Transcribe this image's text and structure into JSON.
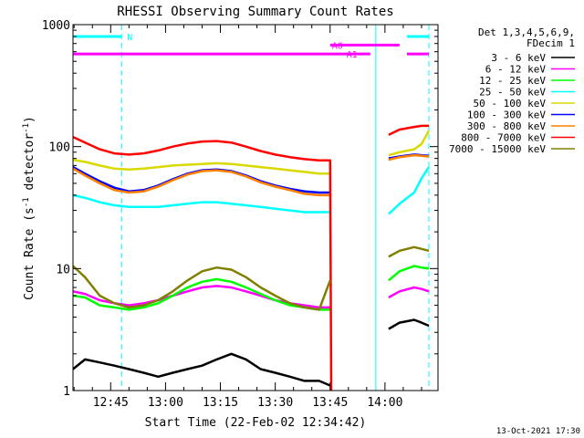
{
  "chart_data": {
    "type": "line",
    "title": "RHESSI Observing Summary Count Rates",
    "xlabel": "Start Time (22-Feb-02 12:34:42)",
    "ylabel": "Count Rate (s",
    "ylabel_sup1": "-1",
    "ylabel_mid": " detector",
    "ylabel_sup2": "-1",
    "ylabel_end": ")",
    "yscale": "log",
    "xlim": [
      754.7,
      854.5
    ],
    "ylim": [
      1,
      1000
    ],
    "x_unit": "minutes of day (UT)",
    "x_ticks": [
      {
        "value": 765,
        "label": "12:45"
      },
      {
        "value": 780,
        "label": "13:00"
      },
      {
        "value": 795,
        "label": "13:15"
      },
      {
        "value": 810,
        "label": "13:30"
      },
      {
        "value": 825,
        "label": "13:45"
      },
      {
        "value": 840,
        "label": "14:00"
      }
    ],
    "y_ticks": [
      {
        "value": 1,
        "label": "1"
      },
      {
        "value": 10,
        "label": "10"
      },
      {
        "value": 100,
        "label": "100"
      },
      {
        "value": 1000,
        "label": "1000"
      }
    ],
    "legend": {
      "placement": "right",
      "header": [
        "Det 1,3,4,5,6,9,",
        "FDecim 1"
      ]
    },
    "series": [
      {
        "name": "3 - 6 keV",
        "color": "#000000",
        "segments": [
          [
            [
              754.7,
              1.5
            ],
            [
              758,
              1.8
            ],
            [
              762,
              1.7
            ],
            [
              766,
              1.6
            ],
            [
              770,
              1.5
            ],
            [
              774,
              1.4
            ],
            [
              778,
              1.3
            ],
            [
              782,
              1.4
            ],
            [
              786,
              1.5
            ],
            [
              790,
              1.6
            ],
            [
              794,
              1.8
            ],
            [
              798,
              2.0
            ],
            [
              802,
              1.8
            ],
            [
              806,
              1.5
            ],
            [
              810,
              1.4
            ],
            [
              814,
              1.3
            ],
            [
              818,
              1.2
            ],
            [
              822,
              1.2
            ],
            [
              825,
              1.1
            ]
          ],
          [
            [
              841,
              3.2
            ],
            [
              844,
              3.6
            ],
            [
              848,
              3.8
            ],
            [
              850,
              3.6
            ],
            [
              852,
              3.4
            ]
          ]
        ]
      },
      {
        "name": "6 - 12 keV",
        "color": "#ff00ff",
        "segments": [
          [
            [
              754.7,
              6.5
            ],
            [
              758,
              6.2
            ],
            [
              762,
              5.5
            ],
            [
              766,
              5.2
            ],
            [
              770,
              5.0
            ],
            [
              774,
              5.2
            ],
            [
              778,
              5.5
            ],
            [
              782,
              6.0
            ],
            [
              786,
              6.5
            ],
            [
              790,
              7.0
            ],
            [
              794,
              7.2
            ],
            [
              798,
              7.0
            ],
            [
              802,
              6.5
            ],
            [
              806,
              6.0
            ],
            [
              810,
              5.5
            ],
            [
              814,
              5.2
            ],
            [
              818,
              5.0
            ],
            [
              822,
              4.8
            ],
            [
              825,
              4.8
            ]
          ],
          [
            [
              841,
              5.8
            ],
            [
              844,
              6.5
            ],
            [
              848,
              7.0
            ],
            [
              850,
              6.8
            ],
            [
              852,
              6.5
            ]
          ]
        ]
      },
      {
        "name": "12 - 25 keV",
        "color": "#00ff00",
        "segments": [
          [
            [
              754.7,
              6.0
            ],
            [
              758,
              5.8
            ],
            [
              762,
              5.0
            ],
            [
              766,
              4.8
            ],
            [
              770,
              4.6
            ],
            [
              774,
              4.8
            ],
            [
              778,
              5.2
            ],
            [
              782,
              6.0
            ],
            [
              786,
              7.0
            ],
            [
              790,
              7.8
            ],
            [
              794,
              8.2
            ],
            [
              798,
              7.8
            ],
            [
              802,
              7.0
            ],
            [
              806,
              6.2
            ],
            [
              810,
              5.5
            ],
            [
              814,
              5.0
            ],
            [
              818,
              4.8
            ],
            [
              822,
              4.6
            ],
            [
              825,
              4.6
            ]
          ],
          [
            [
              841,
              8.0
            ],
            [
              844,
              9.5
            ],
            [
              848,
              10.5
            ],
            [
              850,
              10.2
            ],
            [
              852,
              10.0
            ]
          ]
        ]
      },
      {
        "name": "25 - 50 keV",
        "color": "#00ffff",
        "segments": [
          [
            [
              754.7,
              40
            ],
            [
              758,
              38
            ],
            [
              762,
              35
            ],
            [
              766,
              33
            ],
            [
              770,
              32
            ],
            [
              774,
              32
            ],
            [
              778,
              32
            ],
            [
              782,
              33
            ],
            [
              786,
              34
            ],
            [
              790,
              35
            ],
            [
              794,
              35
            ],
            [
              798,
              34
            ],
            [
              802,
              33
            ],
            [
              806,
              32
            ],
            [
              810,
              31
            ],
            [
              814,
              30
            ],
            [
              818,
              29
            ],
            [
              822,
              29
            ],
            [
              825,
              29
            ]
          ],
          [
            [
              841,
              28
            ],
            [
              844,
              34
            ],
            [
              848,
              42
            ],
            [
              850,
              55
            ],
            [
              852,
              68
            ]
          ]
        ]
      },
      {
        "name": "50 - 100 keV",
        "color": "#d9d900",
        "segments": [
          [
            [
              754.7,
              78
            ],
            [
              758,
              75
            ],
            [
              762,
              70
            ],
            [
              766,
              66
            ],
            [
              770,
              65
            ],
            [
              774,
              66
            ],
            [
              778,
              68
            ],
            [
              782,
              70
            ],
            [
              786,
              71
            ],
            [
              790,
              72
            ],
            [
              794,
              73
            ],
            [
              798,
              72
            ],
            [
              802,
              70
            ],
            [
              806,
              68
            ],
            [
              810,
              66
            ],
            [
              814,
              64
            ],
            [
              818,
              62
            ],
            [
              822,
              60
            ],
            [
              825,
              60
            ]
          ],
          [
            [
              841,
              85
            ],
            [
              844,
              90
            ],
            [
              848,
              95
            ],
            [
              850,
              105
            ],
            [
              852,
              135
            ]
          ]
        ]
      },
      {
        "name": "100 - 300 keV",
        "color": "#0000ff",
        "segments": [
          [
            [
              754.7,
              68
            ],
            [
              758,
              60
            ],
            [
              762,
              52
            ],
            [
              766,
              46
            ],
            [
              770,
              43
            ],
            [
              774,
              44
            ],
            [
              778,
              48
            ],
            [
              782,
              54
            ],
            [
              786,
              60
            ],
            [
              790,
              64
            ],
            [
              794,
              65
            ],
            [
              798,
              63
            ],
            [
              802,
              58
            ],
            [
              806,
              52
            ],
            [
              810,
              48
            ],
            [
              814,
              45
            ],
            [
              818,
              43
            ],
            [
              822,
              42
            ],
            [
              825,
              42
            ]
          ],
          [
            [
              841,
              80
            ],
            [
              844,
              83
            ],
            [
              848,
              86
            ],
            [
              850,
              85
            ],
            [
              852,
              84
            ]
          ]
        ]
      },
      {
        "name": "300 - 800 keV",
        "color": "#ff8000",
        "segments": [
          [
            [
              754.7,
              66
            ],
            [
              758,
              58
            ],
            [
              762,
              50
            ],
            [
              766,
              44
            ],
            [
              770,
              42
            ],
            [
              774,
              43
            ],
            [
              778,
              47
            ],
            [
              782,
              53
            ],
            [
              786,
              59
            ],
            [
              790,
              63
            ],
            [
              794,
              64
            ],
            [
              798,
              62
            ],
            [
              802,
              57
            ],
            [
              806,
              51
            ],
            [
              810,
              47
            ],
            [
              814,
              44
            ],
            [
              818,
              41
            ],
            [
              822,
              40
            ],
            [
              825,
              40
            ]
          ],
          [
            [
              841,
              78
            ],
            [
              844,
              82
            ],
            [
              848,
              85
            ],
            [
              850,
              84
            ],
            [
              852,
              83
            ]
          ]
        ]
      },
      {
        "name": "800 - 7000 keV",
        "color": "#ff0000",
        "segments": [
          [
            [
              754.7,
              120
            ],
            [
              758,
              108
            ],
            [
              762,
              95
            ],
            [
              766,
              88
            ],
            [
              770,
              86
            ],
            [
              774,
              88
            ],
            [
              778,
              93
            ],
            [
              782,
              100
            ],
            [
              786,
              106
            ],
            [
              790,
              110
            ],
            [
              794,
              111
            ],
            [
              798,
              108
            ],
            [
              802,
              100
            ],
            [
              806,
              92
            ],
            [
              810,
              86
            ],
            [
              814,
              82
            ],
            [
              818,
              79
            ],
            [
              822,
              77
            ],
            [
              825,
              77
            ],
            [
              825.3,
              1
            ]
          ],
          [
            [
              841,
              125
            ],
            [
              844,
              138
            ],
            [
              848,
              145
            ],
            [
              850,
              148
            ],
            [
              852,
              148
            ]
          ]
        ]
      },
      {
        "name": "7000 - 15000 keV",
        "color": "#808000",
        "segments": [
          [
            [
              754.7,
              10.5
            ],
            [
              758,
              8.5
            ],
            [
              762,
              6.0
            ],
            [
              766,
              5.2
            ],
            [
              770,
              4.8
            ],
            [
              774,
              5.0
            ],
            [
              778,
              5.5
            ],
            [
              782,
              6.5
            ],
            [
              786,
              8.0
            ],
            [
              790,
              9.5
            ],
            [
              794,
              10.2
            ],
            [
              798,
              9.8
            ],
            [
              802,
              8.5
            ],
            [
              806,
              7.0
            ],
            [
              810,
              6.0
            ],
            [
              814,
              5.2
            ],
            [
              818,
              4.8
            ],
            [
              822,
              4.6
            ],
            [
              825,
              8.0
            ]
          ],
          [
            [
              841,
              12.5
            ],
            [
              844,
              14.0
            ],
            [
              848,
              15.0
            ],
            [
              850,
              14.5
            ],
            [
              852,
              14.0
            ]
          ]
        ]
      }
    ],
    "annotations": {
      "bars": [
        {
          "label": "N",
          "color": "#00ffff",
          "level": 800,
          "segments": [
            [
              754.7,
              768
            ]
          ],
          "label_at": 768
        },
        {
          "label": "",
          "color": "#00ffff",
          "level": 800,
          "segments": [
            [
              846,
              852
            ]
          ]
        },
        {
          "label": "A0",
          "color": "#ff00ff",
          "level": 680,
          "segments": [
            [
              825,
              844
            ]
          ],
          "label_at": 824
        },
        {
          "label": "A1",
          "color": "#ff00ff",
          "level": 575,
          "segments": [
            [
              754.7,
              836
            ],
            [
              846,
              852
            ]
          ],
          "label_at": 828
        }
      ],
      "vlines": [
        {
          "x": 768,
          "color": "#00ffff",
          "style": "dashed"
        },
        {
          "x": 837.5,
          "color": "#00ffff",
          "style": "solid"
        },
        {
          "x": 852,
          "color": "#00ffff",
          "style": "dashed"
        },
        {
          "x": 754.7,
          "color": "#00ffff",
          "style": "solid"
        }
      ]
    }
  },
  "footer": {
    "timestamp": "13-Oct-2021 17:30"
  }
}
